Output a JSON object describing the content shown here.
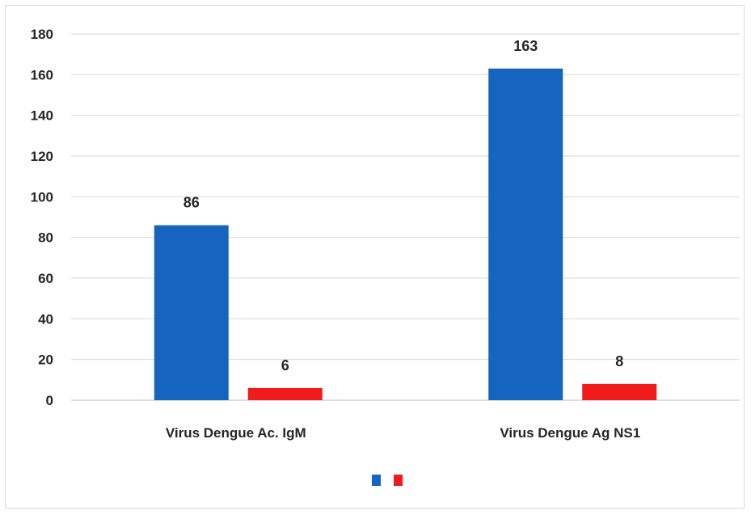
{
  "chart_data": {
    "type": "bar",
    "title": "",
    "xlabel": "",
    "ylabel": "",
    "ylim": [
      0,
      180
    ],
    "yticks": [
      0,
      20,
      40,
      60,
      80,
      100,
      120,
      140,
      160,
      180
    ],
    "grid": true,
    "legend_position": "bottom",
    "categories": [
      "Virus Dengue Ac. IgM",
      "Virus Dengue Ag NS1"
    ],
    "series": [
      {
        "values": [
          86,
          163
        ],
        "color": "#1565c0"
      },
      {
        "values": [
          6,
          8
        ],
        "color": "#f21b1b"
      }
    ],
    "data_labels": true
  }
}
